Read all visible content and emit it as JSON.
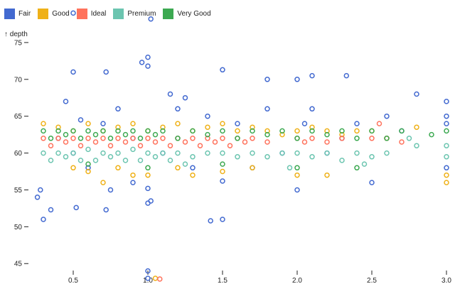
{
  "chart_data": {
    "type": "scatter",
    "title": "",
    "ylabel": "↑ depth",
    "xlabel": "",
    "xlim": [
      0.2,
      3.0
    ],
    "ylim": [
      43,
      80
    ],
    "x_ticks": [
      "0.5",
      "1.0",
      "1.5",
      "2.0",
      "2.5",
      "3.0"
    ],
    "y_ticks": [
      "45",
      "50",
      "55",
      "60",
      "65",
      "70",
      "75"
    ],
    "legend_position": "top-left",
    "series": [
      {
        "name": "Fair",
        "color": "#4269d0",
        "points": [
          [
            0.5,
            79
          ],
          [
            1.02,
            78.2
          ],
          [
            0.72,
            71
          ],
          [
            0.5,
            71
          ],
          [
            1.0,
            73
          ],
          [
            0.96,
            72.3
          ],
          [
            1.0,
            71.8
          ],
          [
            1.5,
            71.3
          ],
          [
            2.1,
            70.5
          ],
          [
            2.33,
            70.5
          ],
          [
            1.8,
            70
          ],
          [
            2.0,
            70
          ],
          [
            0.3,
            51
          ],
          [
            0.35,
            52.3
          ],
          [
            0.72,
            52.3
          ],
          [
            1.02,
            53.5
          ],
          [
            1.0,
            53.2
          ],
          [
            1.5,
            51
          ],
          [
            1.42,
            50.8
          ],
          [
            1.0,
            44
          ],
          [
            1.0,
            43
          ],
          [
            0.52,
            52.6
          ],
          [
            0.28,
            55
          ],
          [
            0.26,
            54
          ],
          [
            1.0,
            55.2
          ],
          [
            1.5,
            56.2
          ],
          [
            2.0,
            55
          ],
          [
            2.5,
            56
          ],
          [
            3.0,
            65
          ],
          [
            3.0,
            64
          ],
          [
            3.0,
            67
          ],
          [
            3.0,
            58
          ],
          [
            0.4,
            62
          ],
          [
            0.5,
            60
          ],
          [
            0.6,
            58
          ],
          [
            0.7,
            64
          ],
          [
            0.8,
            66
          ],
          [
            0.9,
            62
          ],
          [
            1.1,
            60
          ],
          [
            1.2,
            66
          ],
          [
            1.3,
            58
          ],
          [
            1.4,
            65
          ],
          [
            1.6,
            64
          ],
          [
            1.7,
            58
          ],
          [
            1.8,
            66
          ],
          [
            1.9,
            60
          ],
          [
            2.05,
            64
          ],
          [
            2.1,
            66
          ],
          [
            2.2,
            60
          ],
          [
            2.3,
            62
          ],
          [
            2.4,
            64
          ],
          [
            2.6,
            65
          ],
          [
            2.7,
            63
          ],
          [
            2.8,
            68
          ],
          [
            0.9,
            56
          ],
          [
            0.75,
            55
          ],
          [
            1.15,
            68
          ],
          [
            0.45,
            67
          ],
          [
            0.55,
            64.5
          ],
          [
            1.25,
            67.5
          ]
        ]
      },
      {
        "name": "Good",
        "color": "#efb118",
        "points": [
          [
            0.3,
            64
          ],
          [
            0.4,
            63.5
          ],
          [
            0.5,
            63
          ],
          [
            0.6,
            64
          ],
          [
            0.7,
            63
          ],
          [
            0.8,
            63.5
          ],
          [
            0.9,
            64
          ],
          [
            1.0,
            63
          ],
          [
            1.1,
            63.5
          ],
          [
            1.2,
            64
          ],
          [
            1.3,
            63
          ],
          [
            1.4,
            63.5
          ],
          [
            1.5,
            64
          ],
          [
            1.6,
            63
          ],
          [
            1.7,
            63.5
          ],
          [
            1.8,
            63
          ],
          [
            1.9,
            62.5
          ],
          [
            2.0,
            63
          ],
          [
            2.1,
            63.5
          ],
          [
            2.2,
            63
          ],
          [
            2.3,
            62.5
          ],
          [
            2.4,
            63
          ],
          [
            2.5,
            63
          ],
          [
            2.6,
            62
          ],
          [
            2.8,
            63.5
          ],
          [
            3.0,
            56
          ],
          [
            3.0,
            57
          ],
          [
            0.5,
            58
          ],
          [
            0.6,
            57.5
          ],
          [
            0.8,
            58
          ],
          [
            1.0,
            57
          ],
          [
            1.2,
            58
          ],
          [
            1.5,
            57.5
          ],
          [
            2.0,
            57
          ],
          [
            1.05,
            43
          ],
          [
            0.7,
            56
          ],
          [
            0.9,
            57
          ],
          [
            1.3,
            57
          ],
          [
            1.7,
            58
          ],
          [
            2.2,
            57
          ]
        ]
      },
      {
        "name": "Ideal",
        "color": "#ff725c",
        "points": [
          [
            0.3,
            62
          ],
          [
            0.35,
            61
          ],
          [
            0.4,
            62
          ],
          [
            0.45,
            61.5
          ],
          [
            0.5,
            62
          ],
          [
            0.55,
            61
          ],
          [
            0.6,
            62
          ],
          [
            0.65,
            61.5
          ],
          [
            0.7,
            62
          ],
          [
            0.75,
            61
          ],
          [
            0.8,
            62
          ],
          [
            0.85,
            61.5
          ],
          [
            0.9,
            62
          ],
          [
            0.95,
            61
          ],
          [
            1.0,
            62
          ],
          [
            1.05,
            61.5
          ],
          [
            1.1,
            62
          ],
          [
            1.15,
            61
          ],
          [
            1.2,
            62
          ],
          [
            1.25,
            61.5
          ],
          [
            1.3,
            62
          ],
          [
            1.35,
            61
          ],
          [
            1.4,
            62
          ],
          [
            1.45,
            61.5
          ],
          [
            1.5,
            62
          ],
          [
            1.55,
            61
          ],
          [
            1.6,
            62
          ],
          [
            1.65,
            61.5
          ],
          [
            1.7,
            62
          ],
          [
            1.8,
            61.5
          ],
          [
            2.0,
            62
          ],
          [
            2.05,
            61.5
          ],
          [
            2.1,
            62
          ],
          [
            2.2,
            61.5
          ],
          [
            2.3,
            62
          ],
          [
            2.5,
            62
          ],
          [
            2.6,
            62
          ],
          [
            2.7,
            61.5
          ],
          [
            1.08,
            42.9
          ],
          [
            2.55,
            64
          ]
        ]
      },
      {
        "name": "Premium",
        "color": "#6cc5b0",
        "points": [
          [
            0.3,
            60
          ],
          [
            0.35,
            59
          ],
          [
            0.4,
            60
          ],
          [
            0.45,
            59.5
          ],
          [
            0.5,
            60
          ],
          [
            0.55,
            59
          ],
          [
            0.6,
            60.5
          ],
          [
            0.65,
            59
          ],
          [
            0.7,
            60
          ],
          [
            0.75,
            59.5
          ],
          [
            0.8,
            60
          ],
          [
            0.85,
            59
          ],
          [
            0.9,
            60.5
          ],
          [
            0.95,
            59
          ],
          [
            1.0,
            60
          ],
          [
            1.05,
            59.5
          ],
          [
            1.1,
            60
          ],
          [
            1.15,
            59
          ],
          [
            1.2,
            60
          ],
          [
            1.3,
            59.5
          ],
          [
            1.4,
            60
          ],
          [
            1.5,
            60
          ],
          [
            1.6,
            59.5
          ],
          [
            1.7,
            60
          ],
          [
            1.8,
            59.5
          ],
          [
            1.9,
            60
          ],
          [
            2.0,
            60
          ],
          [
            2.1,
            59.5
          ],
          [
            2.2,
            60
          ],
          [
            2.3,
            59
          ],
          [
            2.4,
            60
          ],
          [
            2.5,
            59.5
          ],
          [
            2.6,
            60
          ],
          [
            2.8,
            61
          ],
          [
            3.0,
            61
          ],
          [
            3.0,
            59.5
          ],
          [
            2.75,
            62
          ],
          [
            2.45,
            58.5
          ],
          [
            1.95,
            58
          ],
          [
            1.25,
            58.5
          ]
        ]
      },
      {
        "name": "Very Good",
        "color": "#3ca951",
        "points": [
          [
            0.3,
            63
          ],
          [
            0.35,
            62
          ],
          [
            0.4,
            63
          ],
          [
            0.45,
            62.5
          ],
          [
            0.5,
            63
          ],
          [
            0.55,
            62
          ],
          [
            0.6,
            63
          ],
          [
            0.65,
            62.5
          ],
          [
            0.7,
            63
          ],
          [
            0.75,
            62
          ],
          [
            0.8,
            63
          ],
          [
            0.85,
            62.5
          ],
          [
            0.9,
            63
          ],
          [
            0.95,
            62
          ],
          [
            1.0,
            63
          ],
          [
            1.05,
            62.5
          ],
          [
            1.1,
            63
          ],
          [
            1.2,
            62
          ],
          [
            1.3,
            63
          ],
          [
            1.4,
            62.5
          ],
          [
            1.5,
            63
          ],
          [
            1.6,
            62
          ],
          [
            1.7,
            63
          ],
          [
            1.8,
            62.5
          ],
          [
            1.9,
            63
          ],
          [
            2.0,
            62
          ],
          [
            2.1,
            63
          ],
          [
            2.2,
            62.5
          ],
          [
            2.3,
            63
          ],
          [
            2.4,
            62
          ],
          [
            2.5,
            63
          ],
          [
            2.6,
            62
          ],
          [
            2.7,
            63
          ],
          [
            2.9,
            62.5
          ],
          [
            3.0,
            63
          ],
          [
            0.6,
            58.5
          ],
          [
            1.0,
            58
          ],
          [
            1.5,
            58.5
          ],
          [
            2.0,
            58
          ],
          [
            2.4,
            58
          ]
        ]
      }
    ]
  }
}
